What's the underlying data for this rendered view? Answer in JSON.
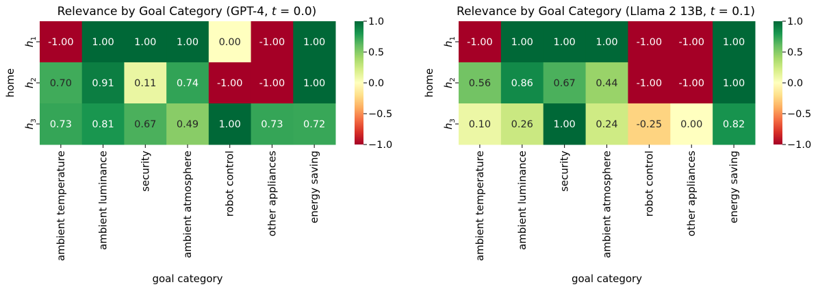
{
  "chart_data": [
    {
      "type": "heatmap",
      "title": "Relevance by Goal Category (GPT-4, t = 0.0)",
      "title_prefix": "Relevance by Goal Category (GPT-4, ",
      "title_var": "t",
      "title_suffix": " = 0.0)",
      "xlabel": "goal category",
      "ylabel": "home",
      "categories": [
        "ambient temperature",
        "ambient luminance",
        "security",
        "ambient atmosphere",
        "robot control",
        "other appliances",
        "energy saving"
      ],
      "rows": [
        "h1",
        "h2",
        "h3"
      ],
      "values": [
        [
          -1.0,
          1.0,
          1.0,
          1.0,
          0.0,
          -1.0,
          1.0
        ],
        [
          0.7,
          0.91,
          0.11,
          0.74,
          -1.0,
          -1.0,
          1.0
        ],
        [
          0.73,
          0.81,
          0.67,
          0.49,
          1.0,
          0.73,
          0.72
        ]
      ],
      "labels": [
        [
          "-1.00",
          "1.00",
          "1.00",
          "1.00",
          "0.00",
          "-1.00",
          "1.00"
        ],
        [
          "0.70",
          "0.91",
          "0.11",
          "0.74",
          "-1.00",
          "-1.00",
          "1.00"
        ],
        [
          "0.73",
          "0.81",
          "0.67",
          "0.49",
          "1.00",
          "0.73",
          "0.72"
        ]
      ],
      "colorbar": {
        "range": [
          -1.0,
          1.0
        ],
        "ticks": [
          "1.0",
          "0.5",
          "0.0",
          "−0.5",
          "−1.0"
        ],
        "cmap": "RdYlGn"
      }
    },
    {
      "type": "heatmap",
      "title": "Relevance by Goal Category (Llama 2 13B, t = 0.1)",
      "title_prefix": "Relevance by Goal Category (Llama 2 13B, ",
      "title_var": "t",
      "title_suffix": " = 0.1)",
      "xlabel": "goal category",
      "ylabel": "home",
      "categories": [
        "ambient temperature",
        "ambient luminance",
        "security",
        "ambient atmosphere",
        "robot control",
        "other appliances",
        "energy saving"
      ],
      "rows": [
        "h1",
        "h2",
        "h3"
      ],
      "values": [
        [
          -1.0,
          1.0,
          1.0,
          1.0,
          -1.0,
          -1.0,
          1.0
        ],
        [
          0.56,
          0.86,
          0.67,
          0.44,
          -1.0,
          -1.0,
          1.0
        ],
        [
          0.1,
          0.26,
          1.0,
          0.24,
          -0.25,
          0.0,
          0.82
        ]
      ],
      "labels": [
        [
          "-1.00",
          "1.00",
          "1.00",
          "1.00",
          "-1.00",
          "-1.00",
          "1.00"
        ],
        [
          "0.56",
          "0.86",
          "0.67",
          "0.44",
          "-1.00",
          "-1.00",
          "1.00"
        ],
        [
          "0.10",
          "0.26",
          "1.00",
          "0.24",
          "-0.25",
          "0.00",
          "0.82"
        ]
      ],
      "colorbar": {
        "range": [
          -1.0,
          1.0
        ],
        "ticks": [
          "1.0",
          "0.5",
          "0.0",
          "−0.5",
          "−1.0"
        ],
        "cmap": "RdYlGn"
      }
    }
  ]
}
